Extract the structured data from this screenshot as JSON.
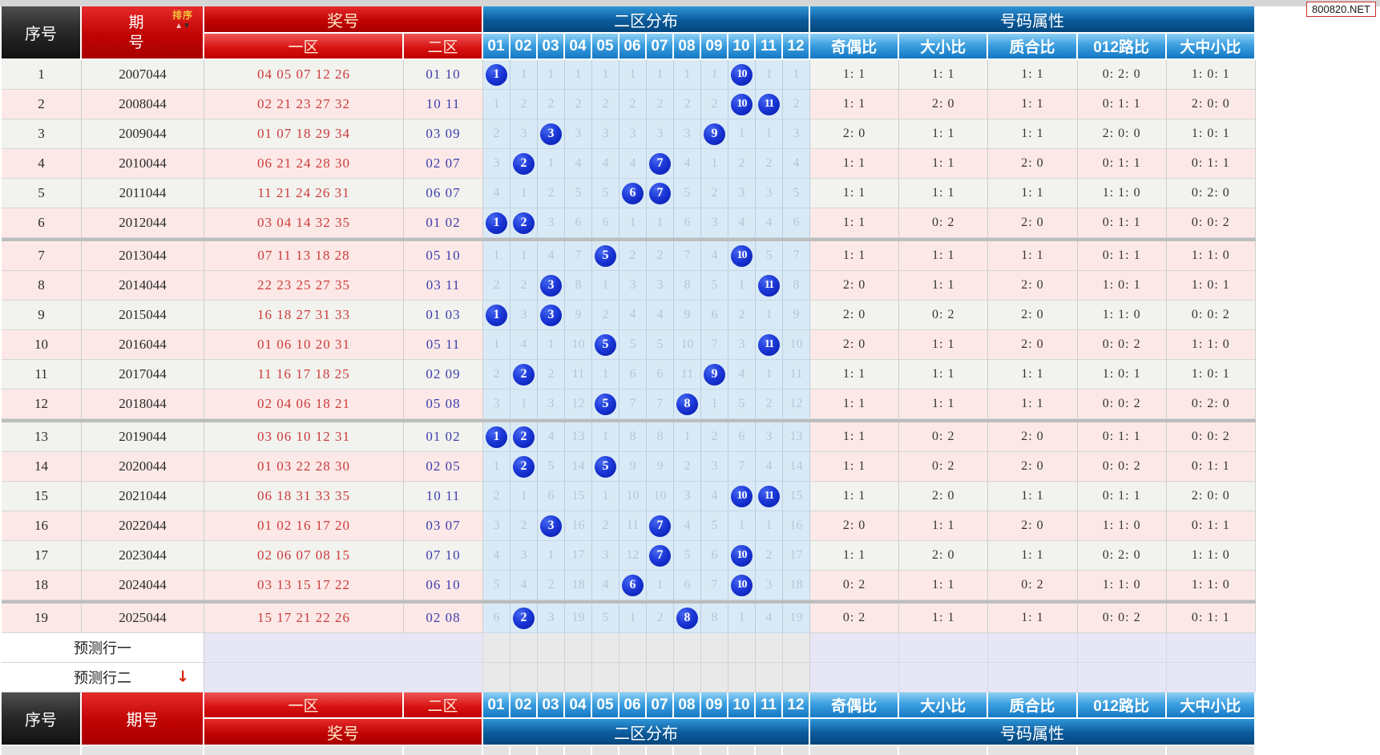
{
  "watermark": "800820.NET",
  "header": {
    "xuhao": "序号",
    "qihao": "期号",
    "paixu": "排序",
    "jianghao": "奖号",
    "yiqu": "一区",
    "erqu": "二区",
    "erqufenbu": "二区分布",
    "ball_columns": [
      "01",
      "02",
      "03",
      "04",
      "05",
      "06",
      "07",
      "08",
      "09",
      "10",
      "11",
      "12"
    ],
    "haomashuxing": "号码属性",
    "attr_columns": [
      "奇偶比",
      "大小比",
      "质合比",
      "012路比",
      "大中小比"
    ]
  },
  "prediction_rows": [
    {
      "label": "预测行一",
      "arrow": ""
    },
    {
      "label": "预测行二",
      "arrow": "↓"
    }
  ],
  "colors": {
    "header_dark": "#2a2a2a",
    "header_red": "#c00303",
    "header_blue_dark": "#0c5a9a",
    "header_blue_light": "#3da0e0",
    "hit_ball_blue": "#1c38d8",
    "zone1_red": "#cc3a3a",
    "zone2_blue": "#3d3dae",
    "stripe_pink": "#fce9e7",
    "stripe_gray": "#f2f2ee",
    "grid_blue_bg": "#d9eaf6"
  },
  "rows": [
    {
      "seq": "1",
      "period": "2007044",
      "zone1": "04 05 07 12 26",
      "zone2": "01 10",
      "grid": [
        1,
        1,
        1,
        1,
        1,
        1,
        1,
        1,
        1,
        10,
        1,
        1
      ],
      "hits": [
        1,
        10
      ],
      "attrs": [
        "1: 1",
        "1: 1",
        "1: 1",
        "0: 2: 0",
        "1: 0: 1"
      ],
      "sL": "g",
      "sR": "g"
    },
    {
      "seq": "2",
      "period": "2008044",
      "zone1": "02 21 23 27 32",
      "zone2": "10 11",
      "grid": [
        1,
        2,
        2,
        2,
        2,
        2,
        2,
        2,
        2,
        10,
        11,
        2
      ],
      "hits": [
        10,
        11
      ],
      "attrs": [
        "1: 1",
        "2: 0",
        "1: 1",
        "0: 1: 1",
        "2: 0: 0"
      ],
      "sL": "p",
      "sR": "p"
    },
    {
      "seq": "3",
      "period": "2009044",
      "zone1": "01 07 18 29 34",
      "zone2": "03 09",
      "grid": [
        2,
        3,
        3,
        3,
        3,
        3,
        3,
        3,
        9,
        1,
        1,
        3
      ],
      "hits": [
        3,
        9
      ],
      "attrs": [
        "2: 0",
        "1: 1",
        "1: 1",
        "2: 0: 0",
        "1: 0: 1"
      ],
      "sL": "g",
      "sR": "g"
    },
    {
      "seq": "4",
      "period": "2010044",
      "zone1": "06 21 24 28 30",
      "zone2": "02 07",
      "grid": [
        3,
        2,
        1,
        4,
        4,
        4,
        7,
        4,
        1,
        2,
        2,
        4
      ],
      "hits": [
        2,
        7
      ],
      "attrs": [
        "1: 1",
        "1: 1",
        "2: 0",
        "0: 1: 1",
        "0: 1: 1"
      ],
      "sL": "p",
      "sR": "p"
    },
    {
      "seq": "5",
      "period": "2011044",
      "zone1": "11 21 24 26 31",
      "zone2": "06 07",
      "grid": [
        4,
        1,
        2,
        5,
        5,
        6,
        7,
        5,
        2,
        3,
        3,
        5
      ],
      "hits": [
        6,
        7
      ],
      "attrs": [
        "1: 1",
        "1: 1",
        "1: 1",
        "1: 1: 0",
        "0: 2: 0"
      ],
      "sL": "g",
      "sR": "g"
    },
    {
      "seq": "6",
      "period": "2012044",
      "zone1": "03 04 14 32 35",
      "zone2": "01 02",
      "grid": [
        1,
        2,
        3,
        6,
        6,
        1,
        1,
        6,
        3,
        4,
        4,
        6
      ],
      "hits": [
        1,
        2
      ],
      "attrs": [
        "1: 1",
        "0: 2",
        "2: 0",
        "0: 1: 1",
        "0: 0: 2"
      ],
      "sL": "p",
      "sR": "p"
    },
    {
      "seq": "7",
      "period": "2013044",
      "zone1": "07 11 13 18 28",
      "zone2": "05 10",
      "grid": [
        1,
        1,
        4,
        7,
        5,
        2,
        2,
        7,
        4,
        10,
        5,
        7
      ],
      "hits": [
        5,
        10
      ],
      "attrs": [
        "1: 1",
        "1: 1",
        "1: 1",
        "0: 1: 1",
        "1: 1: 0"
      ],
      "sL": "p",
      "sR": "p"
    },
    {
      "seq": "8",
      "period": "2014044",
      "zone1": "22 23 25 27 35",
      "zone2": "03 11",
      "grid": [
        2,
        2,
        3,
        8,
        1,
        3,
        3,
        8,
        5,
        1,
        11,
        8
      ],
      "hits": [
        3,
        11
      ],
      "attrs": [
        "2: 0",
        "1: 1",
        "2: 0",
        "1: 0: 1",
        "1: 0: 1"
      ],
      "sL": "p",
      "sR": "p"
    },
    {
      "seq": "9",
      "period": "2015044",
      "zone1": "16 18 27 31 33",
      "zone2": "01 03",
      "grid": [
        1,
        3,
        3,
        9,
        2,
        4,
        4,
        9,
        6,
        2,
        1,
        9
      ],
      "hits": [
        1,
        3
      ],
      "attrs": [
        "2: 0",
        "0: 2",
        "2: 0",
        "1: 1: 0",
        "0: 0: 2"
      ],
      "sL": "g",
      "sR": "g"
    },
    {
      "seq": "10",
      "period": "2016044",
      "zone1": "01 06 10 20 31",
      "zone2": "05 11",
      "grid": [
        1,
        4,
        1,
        10,
        5,
        5,
        5,
        10,
        7,
        3,
        11,
        10
      ],
      "hits": [
        5,
        11
      ],
      "attrs": [
        "2: 0",
        "1: 1",
        "2: 0",
        "0: 0: 2",
        "1: 1: 0"
      ],
      "sL": "p",
      "sR": "p"
    },
    {
      "seq": "11",
      "period": "2017044",
      "zone1": "11 16 17 18 25",
      "zone2": "02 09",
      "grid": [
        2,
        2,
        2,
        11,
        1,
        6,
        6,
        11,
        9,
        4,
        1,
        11
      ],
      "hits": [
        2,
        9
      ],
      "attrs": [
        "1: 1",
        "1: 1",
        "1: 1",
        "1: 0: 1",
        "1: 0: 1"
      ],
      "sL": "g",
      "sR": "g"
    },
    {
      "seq": "12",
      "period": "2018044",
      "zone1": "02 04 06 18 21",
      "zone2": "05 08",
      "grid": [
        3,
        1,
        3,
        12,
        5,
        7,
        7,
        8,
        1,
        5,
        2,
        12
      ],
      "hits": [
        5,
        8
      ],
      "attrs": [
        "1: 1",
        "1: 1",
        "1: 1",
        "0: 0: 2",
        "0: 2: 0"
      ],
      "sL": "p",
      "sR": "p"
    },
    {
      "seq": "13",
      "period": "2019044",
      "zone1": "03 06 10 12 31",
      "zone2": "01 02",
      "grid": [
        1,
        2,
        4,
        13,
        1,
        8,
        8,
        1,
        2,
        6,
        3,
        13
      ],
      "hits": [
        1,
        2
      ],
      "attrs": [
        "1: 1",
        "0: 2",
        "2: 0",
        "0: 1: 1",
        "0: 0: 2"
      ],
      "sL": "g",
      "sR": "p"
    },
    {
      "seq": "14",
      "period": "2020044",
      "zone1": "01 03 22 28 30",
      "zone2": "02 05",
      "grid": [
        1,
        2,
        5,
        14,
        5,
        9,
        9,
        2,
        3,
        7,
        4,
        14
      ],
      "hits": [
        2,
        5
      ],
      "attrs": [
        "1: 1",
        "0: 2",
        "2: 0",
        "0: 0: 2",
        "0: 1: 1"
      ],
      "sL": "p",
      "sR": "p"
    },
    {
      "seq": "15",
      "period": "2021044",
      "zone1": "06 18 31 33 35",
      "zone2": "10 11",
      "grid": [
        2,
        1,
        6,
        15,
        1,
        10,
        10,
        3,
        4,
        10,
        11,
        15
      ],
      "hits": [
        10,
        11
      ],
      "attrs": [
        "1: 1",
        "2: 0",
        "1: 1",
        "0: 1: 1",
        "2: 0: 0"
      ],
      "sL": "g",
      "sR": "g"
    },
    {
      "seq": "16",
      "period": "2022044",
      "zone1": "01 02 16 17 20",
      "zone2": "03 07",
      "grid": [
        3,
        2,
        3,
        16,
        2,
        11,
        7,
        4,
        5,
        1,
        1,
        16
      ],
      "hits": [
        3,
        7
      ],
      "attrs": [
        "2: 0",
        "1: 1",
        "2: 0",
        "1: 1: 0",
        "0: 1: 1"
      ],
      "sL": "p",
      "sR": "p"
    },
    {
      "seq": "17",
      "period": "2023044",
      "zone1": "02 06 07 08 15",
      "zone2": "07 10",
      "grid": [
        4,
        3,
        1,
        17,
        3,
        12,
        7,
        5,
        6,
        10,
        2,
        17
      ],
      "hits": [
        7,
        10
      ],
      "attrs": [
        "1: 1",
        "2: 0",
        "1: 1",
        "0: 2: 0",
        "1: 1: 0"
      ],
      "sL": "g",
      "sR": "g"
    },
    {
      "seq": "18",
      "period": "2024044",
      "zone1": "03 13 15 17 22",
      "zone2": "06 10",
      "grid": [
        5,
        4,
        2,
        18,
        4,
        6,
        1,
        6,
        7,
        10,
        3,
        18
      ],
      "hits": [
        6,
        10
      ],
      "attrs": [
        "0: 2",
        "1: 1",
        "0: 2",
        "1: 1: 0",
        "1: 1: 0"
      ],
      "sL": "p",
      "sR": "p"
    },
    {
      "seq": "19",
      "period": "2025044",
      "zone1": "15 17 21 22 26",
      "zone2": "02 08",
      "grid": [
        6,
        2,
        3,
        19,
        5,
        1,
        2,
        8,
        8,
        1,
        4,
        19
      ],
      "hits": [
        2,
        8
      ],
      "attrs": [
        "0: 2",
        "1: 1",
        "1: 1",
        "0: 0: 2",
        "0: 1: 1"
      ],
      "sL": "p",
      "sR": "p"
    }
  ]
}
